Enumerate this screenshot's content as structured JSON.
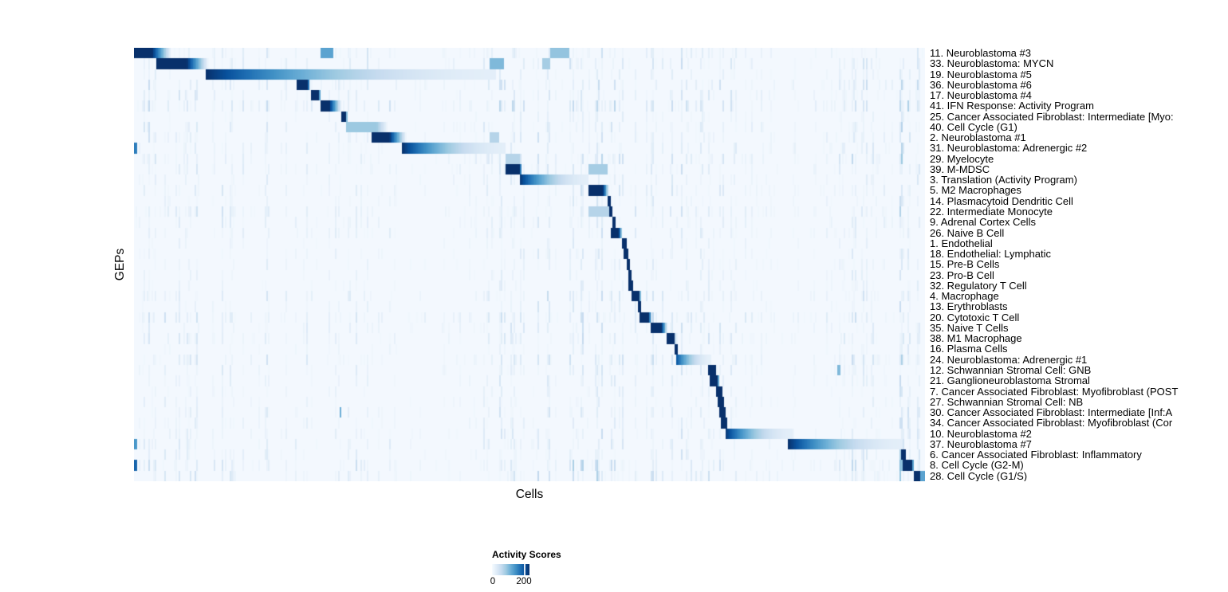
{
  "legend": {
    "title": "Activity Scores",
    "ticks": [
      "0",
      "200"
    ],
    "tick_positions_pct": [
      0,
      85
    ]
  },
  "chart_data": {
    "type": "heatmap",
    "title": "",
    "xlabel": "Cells",
    "ylabel": "GEPs",
    "value_label": "Activity Scores",
    "value_range": [
      0,
      200
    ],
    "colormap_stops": [
      "#f7fbff",
      "#deebf7",
      "#c6dbef",
      "#9ecae1",
      "#6baed6",
      "#4292c6",
      "#2171b5",
      "#08519c",
      "#08306b"
    ],
    "n_rows": 41,
    "row_order_note": "rows top to bottom; blocks give active cell span as percent of x-axis, i = peak intensity (1 = activity >= 200), g = fades to right, t = fade tail percent",
    "rows": [
      {
        "label": "11. Neuroblastoma #3",
        "noise": 0.5,
        "blocks": [
          {
            "s": 0,
            "e": 2.2,
            "i": 1,
            "t": 2.5
          },
          {
            "s": 23.4,
            "e": 25.0,
            "i": 0.55
          },
          {
            "s": 52.6,
            "e": 55.0,
            "i": 0.4
          }
        ]
      },
      {
        "label": "33. Neuroblastoma: MYCN",
        "noise": 0.5,
        "blocks": [
          {
            "s": 2.8,
            "e": 6.6,
            "i": 1,
            "t": 2.8
          },
          {
            "s": 44.9,
            "e": 46.7,
            "i": 0.45
          },
          {
            "s": 51.5,
            "e": 52.5,
            "i": 0.35
          }
        ]
      },
      {
        "label": "19. Neuroblastoma #5",
        "noise": 0.35,
        "blocks": [
          {
            "s": 9.0,
            "e": 45.6,
            "i": 1,
            "g": 1
          }
        ]
      },
      {
        "label": "36. Neuroblastoma #6",
        "noise": 0.65,
        "blocks": [
          {
            "s": 20.5,
            "e": 21.9,
            "i": 1,
            "t": 0.3
          }
        ]
      },
      {
        "label": "17. Neuroblastoma #4",
        "noise": 0.5,
        "blocks": [
          {
            "s": 22.2,
            "e": 23.3,
            "i": 1,
            "t": 0.2
          }
        ]
      },
      {
        "label": "41. IFN Response: Activity Program",
        "noise": 0.75,
        "blocks": [
          {
            "s": 23.5,
            "e": 24.6,
            "i": 1,
            "t": 1.6
          }
        ]
      },
      {
        "label": "25. Cancer Associated Fibroblast: Intermediate [Myo:",
        "noise": 0.3,
        "blocks": [
          {
            "s": 26.1,
            "e": 26.7,
            "i": 1,
            "t": 0.2
          }
        ]
      },
      {
        "label": "40. Cell Cycle (G1)",
        "noise": 0.5,
        "blocks": [
          {
            "s": 26.7,
            "e": 30.6,
            "i": 0.38,
            "t": 1.5
          }
        ]
      },
      {
        "label": "2. Neuroblastoma #1",
        "noise": 0.45,
        "blocks": [
          {
            "s": 29.9,
            "e": 32.2,
            "i": 1,
            "t": 2.2
          },
          {
            "s": 44.9,
            "e": 46.0,
            "i": 0.3
          }
        ]
      },
      {
        "label": "31. Neuroblastoma: Adrenergic #2",
        "noise": 0.5,
        "blocks": [
          {
            "s": 33.8,
            "e": 46.9,
            "i": 1,
            "g": 1
          },
          {
            "s": 0,
            "e": 0.4,
            "i": 0.7
          }
        ]
      },
      {
        "label": "29. Myelocyte",
        "noise": 0.65,
        "blocks": [
          {
            "s": 46.9,
            "e": 48.6,
            "i": 0.3
          }
        ]
      },
      {
        "label": "39. M-MDSC",
        "noise": 0.5,
        "blocks": [
          {
            "s": 46.9,
            "e": 48.7,
            "i": 1,
            "t": 0.3
          },
          {
            "s": 57.4,
            "e": 59.8,
            "i": 0.35
          }
        ]
      },
      {
        "label": "3. Translation (Activity Program)",
        "noise": 0.4,
        "blocks": [
          {
            "s": 48.6,
            "e": 57.4,
            "i": 1,
            "g": 1
          }
        ]
      },
      {
        "label": "5. M2 Macrophages",
        "noise": 0.5,
        "blocks": [
          {
            "s": 57.4,
            "e": 59.2,
            "i": 1,
            "t": 0.8
          }
        ]
      },
      {
        "label": "14. Plasmacytoid Dendritic Cell",
        "noise": 0.35,
        "blocks": [
          {
            "s": 59.7,
            "e": 60.2,
            "i": 1
          }
        ]
      },
      {
        "label": "22. Intermediate Monocyte",
        "noise": 0.6,
        "blocks": [
          {
            "s": 59.9,
            "e": 60.4,
            "i": 1
          },
          {
            "s": 57.4,
            "e": 59.9,
            "i": 0.3
          }
        ]
      },
      {
        "label": "9. Adrenal Cortex Cells",
        "noise": 0.45,
        "blocks": [
          {
            "s": 60.3,
            "e": 60.8,
            "i": 1
          }
        ]
      },
      {
        "label": "26. Naive B Cell",
        "noise": 0.4,
        "blocks": [
          {
            "s": 60.1,
            "e": 61.2,
            "i": 1,
            "t": 0.5
          }
        ]
      },
      {
        "label": "1. Endothelial",
        "noise": 0.3,
        "blocks": [
          {
            "s": 61.6,
            "e": 62.1,
            "i": 1
          }
        ]
      },
      {
        "label": "18. Endothelial: Lymphatic",
        "noise": 0.35,
        "blocks": [
          {
            "s": 61.8,
            "e": 62.3,
            "i": 1
          }
        ]
      },
      {
        "label": "15. Pre-B Cells",
        "noise": 0.35,
        "blocks": [
          {
            "s": 62.1,
            "e": 62.7,
            "i": 1
          }
        ]
      },
      {
        "label": "23. Pro-B Cell",
        "noise": 0.3,
        "blocks": [
          {
            "s": 62.3,
            "e": 62.9,
            "i": 1
          }
        ]
      },
      {
        "label": "32. Regulatory T Cell",
        "noise": 0.35,
        "blocks": [
          {
            "s": 62.5,
            "e": 63.1,
            "i": 1
          }
        ]
      },
      {
        "label": "4. Macrophage",
        "noise": 0.6,
        "blocks": [
          {
            "s": 62.9,
            "e": 63.8,
            "i": 1,
            "t": 0.2
          }
        ]
      },
      {
        "label": "13. Erythroblasts",
        "noise": 0.35,
        "blocks": [
          {
            "s": 63.6,
            "e": 64.1,
            "i": 1
          }
        ]
      },
      {
        "label": "20. Cytotoxic T Cell",
        "noise": 0.65,
        "blocks": [
          {
            "s": 63.9,
            "e": 65.0,
            "i": 1,
            "t": 0.4
          }
        ]
      },
      {
        "label": "35. Naive T Cells",
        "noise": 0.5,
        "blocks": [
          {
            "s": 65.2,
            "e": 66.6,
            "i": 1,
            "t": 0.8
          }
        ]
      },
      {
        "label": "38. M1 Macrophage",
        "noise": 0.55,
        "blocks": [
          {
            "s": 67.3,
            "e": 68.2,
            "i": 1,
            "t": 0.2
          }
        ]
      },
      {
        "label": "16. Plasma Cells",
        "noise": 0.3,
        "blocks": [
          {
            "s": 68.3,
            "e": 68.7,
            "i": 1
          }
        ]
      },
      {
        "label": "24. Neuroblastoma: Adrenergic #1",
        "noise": 0.55,
        "blocks": [
          {
            "s": 68.5,
            "e": 72.9,
            "i": 0.85,
            "g": 1
          }
        ]
      },
      {
        "label": "12. Schwannian Stromal Cell: GNB",
        "noise": 0.4,
        "blocks": [
          {
            "s": 72.4,
            "e": 73.4,
            "i": 1,
            "t": 0.2
          },
          {
            "s": 88.9,
            "e": 89.3,
            "i": 0.45
          }
        ]
      },
      {
        "label": "21. Ganglioneuroblastoma Stromal",
        "noise": 0.35,
        "blocks": [
          {
            "s": 72.7,
            "e": 73.7,
            "i": 1,
            "t": 0.2
          }
        ]
      },
      {
        "label": "7. Cancer Associated Fibroblast: Myofibroblast (POST",
        "noise": 0.3,
        "blocks": [
          {
            "s": 73.5,
            "e": 74.2,
            "i": 1
          }
        ]
      },
      {
        "label": "27. Schwannian Stromal Cell: NB",
        "noise": 0.35,
        "blocks": [
          {
            "s": 73.7,
            "e": 74.5,
            "i": 1
          }
        ]
      },
      {
        "label": "30. Cancer Associated Fibroblast: Intermediate [Inf:A",
        "noise": 0.4,
        "blocks": [
          {
            "s": 73.9,
            "e": 74.6,
            "i": 1
          },
          {
            "s": 25.9,
            "e": 26.2,
            "i": 0.5
          }
        ]
      },
      {
        "label": "34. Cancer Associated Fibroblast: Myofibroblast (Cor",
        "noise": 0.35,
        "blocks": [
          {
            "s": 74.1,
            "e": 74.9,
            "i": 1
          }
        ]
      },
      {
        "label": "10. Neuroblastoma #2",
        "noise": 0.45,
        "blocks": [
          {
            "s": 74.6,
            "e": 83.2,
            "i": 1,
            "g": 1
          }
        ]
      },
      {
        "label": "37. Neuroblastoma #7",
        "noise": 0.5,
        "blocks": [
          {
            "s": 82.6,
            "e": 97.0,
            "i": 1,
            "g": 1
          },
          {
            "s": 0,
            "e": 0.4,
            "i": 0.6
          }
        ]
      },
      {
        "label": "6. Cancer Associated Fibroblast: Inflammatory",
        "noise": 0.45,
        "blocks": [
          {
            "s": 96.9,
            "e": 97.4,
            "i": 1
          }
        ]
      },
      {
        "label": "8. Cell Cycle (G2-M)",
        "noise": 0.7,
        "blocks": [
          {
            "s": 97.1,
            "e": 98.3,
            "i": 1,
            "t": 0.2
          },
          {
            "s": 0,
            "e": 0.4,
            "i": 0.8
          }
        ]
      },
      {
        "label": "28. Cell Cycle (G1/S)",
        "noise": 0.65,
        "blocks": [
          {
            "s": 98.5,
            "e": 99.2,
            "i": 1
          },
          {
            "s": 99.3,
            "e": 100,
            "i": 0.55
          }
        ]
      }
    ],
    "noise_bands": [
      {
        "s": 0,
        "e": 9,
        "strength": 0.35
      },
      {
        "s": 9,
        "e": 20.5,
        "strength": 0.3
      },
      {
        "s": 20.5,
        "e": 26,
        "strength": 0.25
      },
      {
        "s": 26,
        "e": 33.5,
        "strength": 0.3
      },
      {
        "s": 33.5,
        "e": 44,
        "strength": 0.2
      },
      {
        "s": 44,
        "e": 50,
        "strength": 0.5
      },
      {
        "s": 50,
        "e": 57,
        "strength": 0.45
      },
      {
        "s": 57,
        "e": 62.5,
        "strength": 0.55
      },
      {
        "s": 62.5,
        "e": 68.5,
        "strength": 0.35
      },
      {
        "s": 68.5,
        "e": 76,
        "strength": 0.4
      },
      {
        "s": 76,
        "e": 88.5,
        "strength": 0.2
      },
      {
        "s": 88.5,
        "e": 94,
        "strength": 0.4
      },
      {
        "s": 94,
        "e": 96.5,
        "strength": 0.2
      },
      {
        "s": 96.5,
        "e": 100,
        "strength": 0.6
      }
    ]
  }
}
